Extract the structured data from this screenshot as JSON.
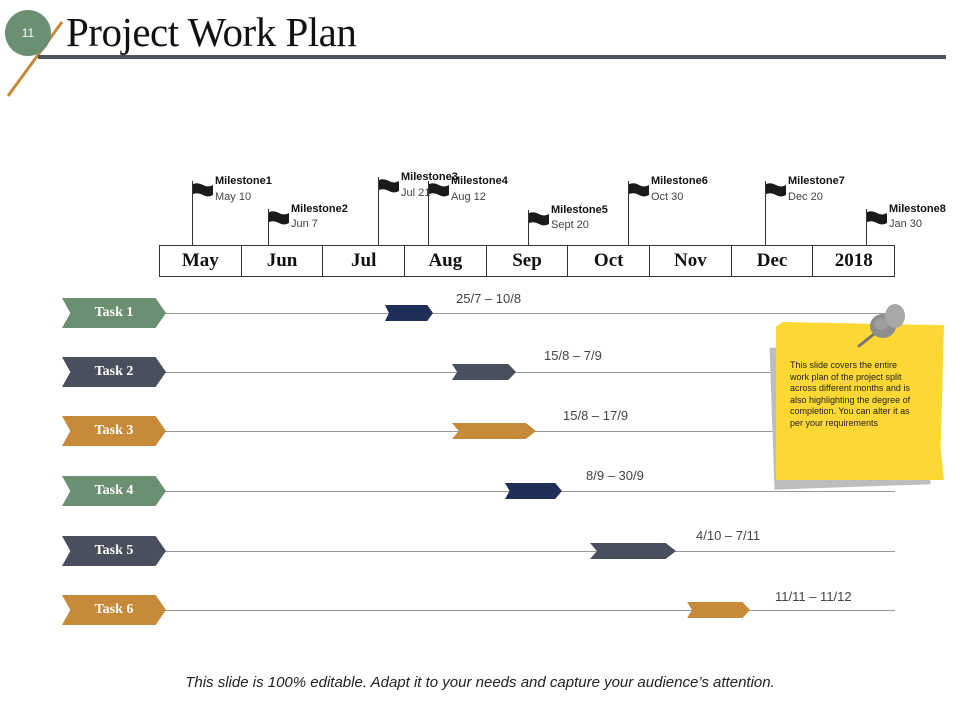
{
  "slide": {
    "number": "11",
    "title": "Project Work Plan",
    "footer": "This slide is 100% editable. Adapt it to your needs and capture your audience’s attention."
  },
  "timeline": {
    "months": [
      "May",
      "Jun",
      "Jul",
      "Aug",
      "Sep",
      "Oct",
      "Nov",
      "Dec",
      "2018"
    ],
    "milestones": [
      {
        "name": "Milestone1",
        "date": "May 10"
      },
      {
        "name": "Milestone2",
        "date": "Jun 7"
      },
      {
        "name": "Milestone3",
        "date": "Jul 21"
      },
      {
        "name": "Milestone4",
        "date": "Aug 12"
      },
      {
        "name": "Milestone5",
        "date": "Sept 20"
      },
      {
        "name": "Milestone6",
        "date": "Oct 30"
      },
      {
        "name": "Milestone7",
        "date": "Dec 20"
      },
      {
        "name": "Milestone8",
        "date": "Jan 30"
      }
    ]
  },
  "tasks": [
    {
      "label": "Task 1",
      "range": "25/7 – 10/8",
      "tag_color": "#6b8f71",
      "bar_color": "#1f2f5a"
    },
    {
      "label": "Task 2",
      "range": "15/8 – 7/9",
      "tag_color": "#4a4f5e",
      "bar_color": "#4a4f5e"
    },
    {
      "label": "Task 3",
      "range": "15/8 – 17/9",
      "tag_color": "#c68a3a",
      "bar_color": "#c68a3a"
    },
    {
      "label": "Task 4",
      "range": "8/9 – 30/9",
      "tag_color": "#6b8f71",
      "bar_color": "#1f2f5a"
    },
    {
      "label": "Task 5",
      "range": "4/10 – 7/11",
      "tag_color": "#4a4f5e",
      "bar_color": "#4a4f5e"
    },
    {
      "label": "Task 6",
      "range": "11/11 – 11/12",
      "tag_color": "#c68a3a",
      "bar_color": "#c68a3a"
    }
  ],
  "note": {
    "text": "This slide covers the entire work plan of the project split across different months and is also highlighting the degree of completion. You can alter it as per your requirements"
  }
}
